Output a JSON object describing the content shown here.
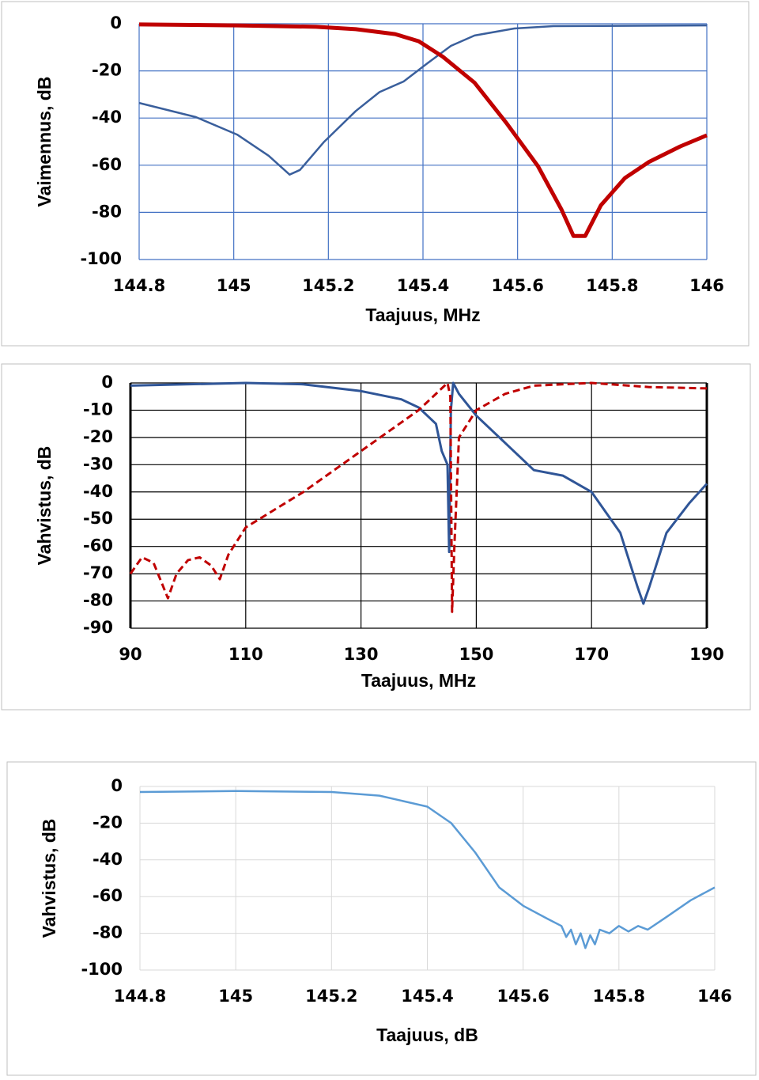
{
  "chart_data": [
    {
      "type": "line",
      "xlabel": "Taajuus, MHz",
      "ylabel": "Vaimennus, dB",
      "xlim": [
        144.8,
        146
      ],
      "xticks": [
        144.8,
        145,
        145.2,
        145.4,
        145.6,
        145.8,
        146
      ],
      "ylim": [
        -100,
        0
      ],
      "yticks": [
        0,
        -20,
        -40,
        -60,
        -80,
        -100
      ],
      "grid": true,
      "grid_color": "#4472c4",
      "series": [
        {
          "name": null,
          "color": "#3a5f9c",
          "style": "solid",
          "x": [
            144.8,
            144.92,
            145.007,
            145.074,
            145.118,
            145.14,
            145.19,
            145.258,
            145.308,
            145.359,
            145.409,
            145.459,
            145.509,
            145.593,
            145.676,
            146
          ],
          "values": [
            -33.6,
            -39.6,
            -47,
            -56,
            -64,
            -62,
            -50.3,
            -37,
            -29,
            -24.5,
            -16.8,
            -9.4,
            -5,
            -2,
            -1,
            -0.7
          ]
        },
        {
          "name": null,
          "color": "#c00000",
          "style": "solid",
          "x": [
            144.8,
            145.007,
            145.174,
            145.258,
            145.341,
            145.391,
            145.442,
            145.509,
            145.576,
            145.643,
            145.693,
            145.718,
            145.743,
            145.776,
            145.827,
            145.877,
            145.944,
            146
          ],
          "values": [
            -0.3,
            -0.7,
            -1.3,
            -2.3,
            -4.4,
            -7.4,
            -14,
            -25,
            -42,
            -60.4,
            -78.9,
            -90,
            -90,
            -77,
            -65.4,
            -58.7,
            -52,
            -47.3
          ]
        }
      ]
    },
    {
      "type": "line",
      "xlabel": "Taajuus, MHz",
      "ylabel": "Vahvistus, dB",
      "xlim": [
        90,
        190
      ],
      "xticks": [
        90,
        110,
        130,
        150,
        170,
        190
      ],
      "ylim": [
        -90,
        0
      ],
      "yticks": [
        0,
        -10,
        -20,
        -30,
        -40,
        -50,
        -60,
        -70,
        -80,
        -90
      ],
      "grid": true,
      "grid_color": "#000000",
      "series": [
        {
          "name": null,
          "color": "#2f5597",
          "style": "solid",
          "x": [
            90,
            110,
            120,
            130,
            137,
            140,
            143,
            144,
            145,
            145.3,
            145.6,
            146,
            147,
            150,
            155,
            160,
            165,
            170,
            175,
            178,
            179,
            180,
            183,
            187,
            190
          ],
          "values": [
            -1,
            0,
            -0.5,
            -3,
            -6,
            -9,
            -15,
            -25,
            -30,
            -62,
            -10,
            0,
            -4,
            -12,
            -22,
            -32,
            -34,
            -40,
            -55,
            -75,
            -81,
            -75,
            -55,
            -44,
            -37
          ]
        },
        {
          "name": null,
          "color": "#c00000",
          "style": "dashed",
          "x": [
            90,
            92,
            94,
            96.5,
            98,
            100,
            102,
            104,
            105.5,
            107,
            110,
            120,
            130,
            140,
            144,
            145,
            145.5,
            145.8,
            146.2,
            147,
            150,
            155,
            160,
            170,
            180,
            190
          ],
          "values": [
            -70,
            -64,
            -66,
            -79,
            -70,
            -65,
            -64,
            -67,
            -72,
            -63,
            -53,
            -40,
            -25,
            -10,
            -2,
            0,
            -5,
            -84,
            -60,
            -20,
            -10,
            -4,
            -1,
            0,
            -1.5,
            -2
          ]
        }
      ]
    },
    {
      "type": "line",
      "xlabel": "Taajuus, dB",
      "ylabel": "Vahvistus, dB",
      "xlim": [
        144.8,
        146
      ],
      "xticks": [
        144.8,
        145,
        145.2,
        145.4,
        145.6,
        145.8,
        146
      ],
      "ylim": [
        -100,
        0
      ],
      "yticks": [
        0,
        -20,
        -40,
        -60,
        -80,
        -100
      ],
      "grid": true,
      "grid_color": "#d9d9d9",
      "series": [
        {
          "name": null,
          "color": "#5b9bd5",
          "style": "solid",
          "x": [
            144.8,
            145,
            145.2,
            145.3,
            145.4,
            145.45,
            145.5,
            145.55,
            145.6,
            145.65,
            145.68,
            145.69,
            145.7,
            145.71,
            145.72,
            145.73,
            145.74,
            145.75,
            145.76,
            145.78,
            145.8,
            145.82,
            145.84,
            145.86,
            145.9,
            145.95,
            146
          ],
          "values": [
            -3,
            -2.5,
            -3,
            -5,
            -11,
            -20,
            -36,
            -55,
            -65,
            -72,
            -76,
            -82,
            -78,
            -86,
            -80,
            -88,
            -81,
            -86,
            -78,
            -80,
            -76,
            -79,
            -76,
            -78,
            -71,
            -62,
            -55
          ]
        }
      ]
    }
  ]
}
